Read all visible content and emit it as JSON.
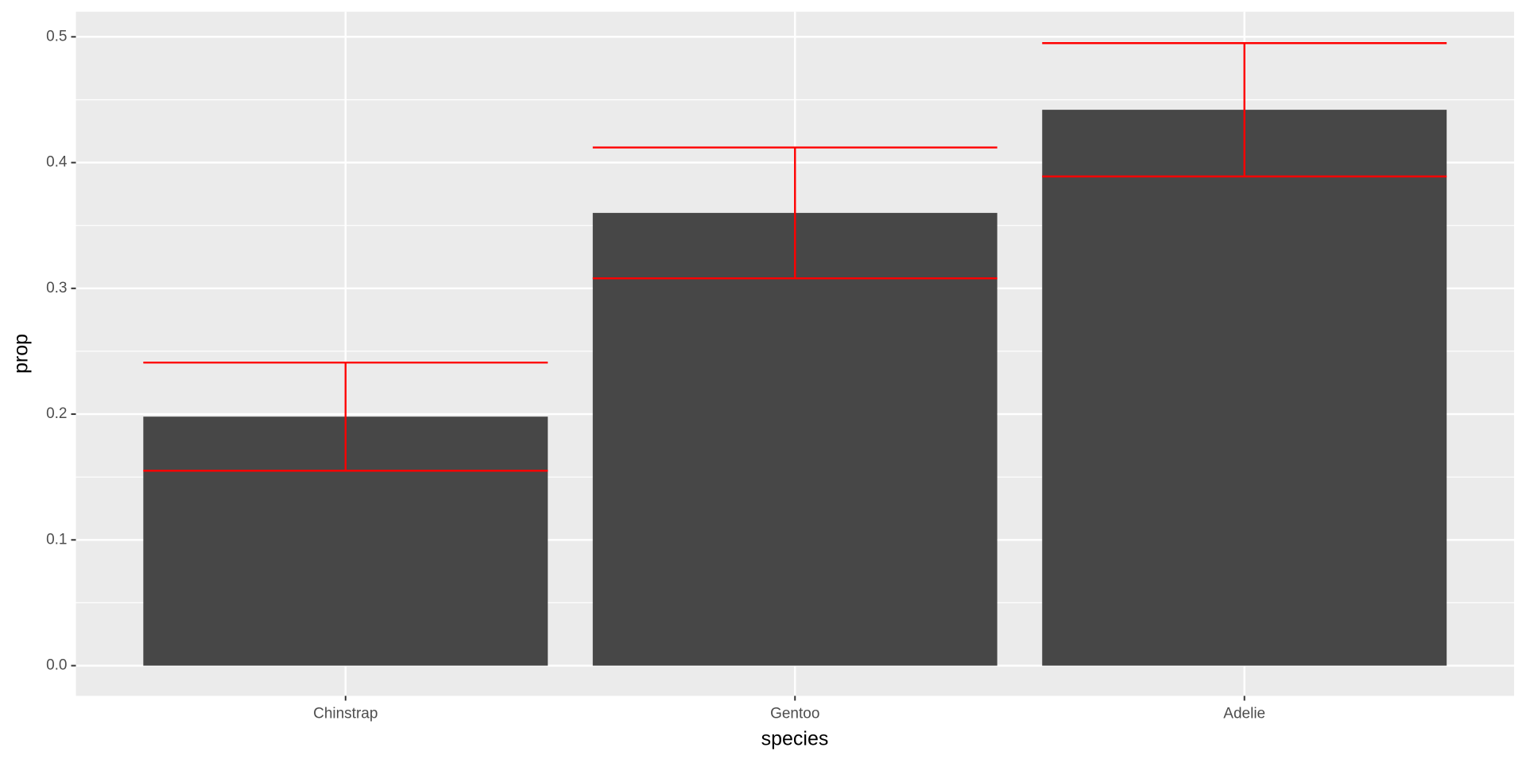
{
  "chart_data": {
    "type": "bar",
    "x_label": "species",
    "y_label": "prop",
    "categories": [
      "Chinstrap",
      "Gentoo",
      "Adelie"
    ],
    "values": [
      0.198,
      0.36,
      0.442
    ],
    "errors": [
      0.043,
      0.052,
      0.053
    ],
    "color": "#474747",
    "error_color": "#ff0000",
    "ylim": [
      -0.024,
      0.52
    ],
    "yticks": [
      {
        "value": 0,
        "label": "0.0"
      },
      0.1,
      0.2,
      0.3,
      0.4,
      0.5
    ],
    "grid": true
  }
}
